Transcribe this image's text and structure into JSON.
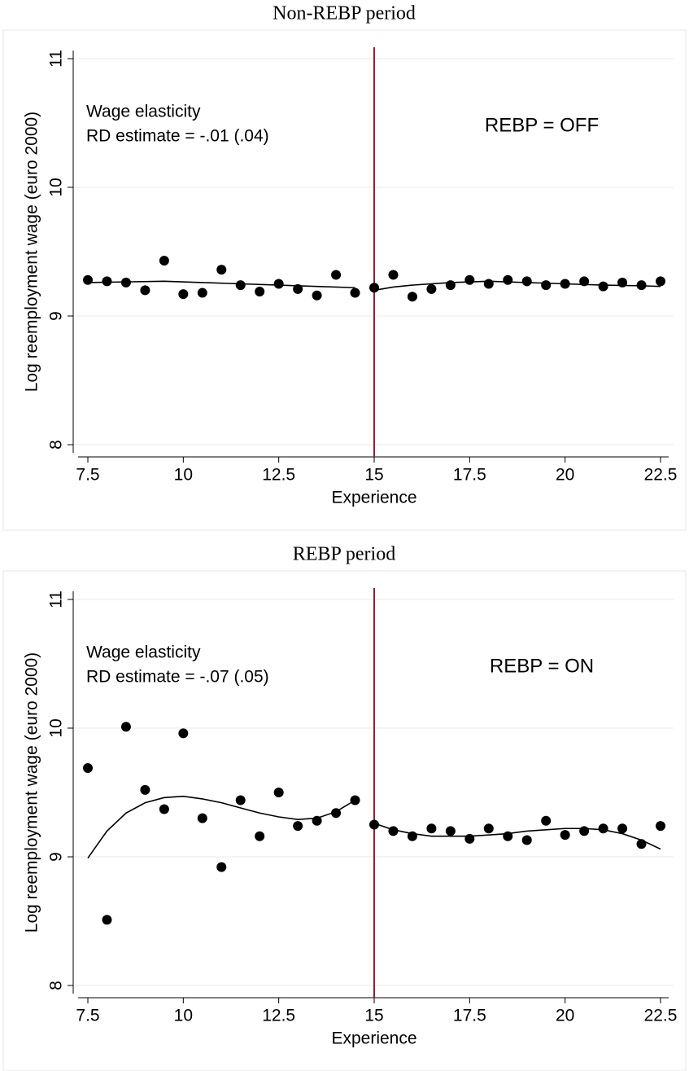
{
  "chart_data": [
    {
      "type": "scatter",
      "title": "Non-REBP period",
      "xlabel": "Experience",
      "ylabel": "Log reemployment wage (euro 2000)",
      "annotations": [
        "Wage elasticity",
        "RD estimate = -.01 (.04)"
      ],
      "regime_label": "REBP = OFF",
      "x": [
        7.5,
        8,
        8.5,
        9,
        9.5,
        10,
        10.5,
        11,
        11.5,
        12,
        12.5,
        13,
        13.5,
        14,
        14.5,
        15,
        15.5,
        16,
        16.5,
        17,
        17.5,
        18,
        18.5,
        19,
        19.5,
        20,
        20.5,
        21,
        21.5,
        22,
        22.5
      ],
      "values": [
        9.28,
        9.27,
        9.26,
        9.2,
        9.43,
        9.17,
        9.18,
        9.36,
        9.24,
        9.19,
        9.25,
        9.21,
        9.16,
        9.32,
        9.18,
        9.22,
        9.32,
        9.15,
        9.21,
        9.24,
        9.28,
        9.25,
        9.28,
        9.27,
        9.24,
        9.25,
        9.27,
        9.23,
        9.26,
        9.24,
        9.27
      ],
      "color": "#000000",
      "fit": [
        {
          "x": [
            7.5,
            8.5,
            9.5,
            10.5,
            11.5,
            12.5,
            13.5,
            14.5
          ],
          "values": [
            9.26,
            9.265,
            9.27,
            9.26,
            9.25,
            9.24,
            9.23,
            9.22
          ]
        },
        {
          "x": [
            15,
            15.5,
            16,
            17,
            18,
            19,
            20,
            21,
            22,
            22.5
          ],
          "values": [
            9.2,
            9.225,
            9.24,
            9.26,
            9.27,
            9.26,
            9.25,
            9.24,
            9.235,
            9.23
          ]
        }
      ],
      "cutoff": 15,
      "cutoff_color": "#9b1b30",
      "xlim": [
        7.5,
        22.5
      ],
      "xticks": [
        7.5,
        10,
        12.5,
        15,
        17.5,
        20,
        22.5
      ],
      "ylim": [
        8,
        11
      ],
      "yticks": [
        8,
        9,
        10,
        11
      ],
      "grid": true
    },
    {
      "type": "scatter",
      "title": "REBP period",
      "xlabel": "Experience",
      "ylabel": "Log reemployment wage (euro 2000)",
      "annotations": [
        "Wage elasticity",
        "RD estimate = -.07 (.05)"
      ],
      "regime_label": "REBP = ON",
      "x": [
        7.5,
        8,
        8.5,
        9,
        9.5,
        10,
        10.5,
        11,
        11.5,
        12,
        12.5,
        13,
        13.5,
        14,
        14.5,
        15,
        15.5,
        16,
        16.5,
        17,
        17.5,
        18,
        18.5,
        19,
        19.5,
        20,
        20.5,
        21,
        21.5,
        22,
        22.5
      ],
      "values": [
        9.69,
        8.51,
        10.01,
        9.52,
        9.37,
        9.96,
        9.3,
        8.92,
        9.44,
        9.16,
        9.5,
        9.24,
        9.28,
        9.34,
        9.44,
        9.25,
        9.2,
        9.16,
        9.22,
        9.2,
        9.14,
        9.22,
        9.16,
        9.13,
        9.28,
        9.17,
        9.2,
        9.22,
        9.22,
        9.1,
        9.24
      ],
      "color": "#000000",
      "fit": [
        {
          "x": [
            7.5,
            8,
            8.5,
            9,
            9.5,
            10,
            10.5,
            11,
            11.5,
            12,
            12.5,
            13,
            13.5,
            14,
            14.5
          ],
          "values": [
            8.99,
            9.2,
            9.34,
            9.42,
            9.46,
            9.47,
            9.45,
            9.42,
            9.38,
            9.34,
            9.31,
            9.29,
            9.3,
            9.35,
            9.44
          ]
        },
        {
          "x": [
            15,
            15.5,
            16,
            16.5,
            17,
            17.5,
            18,
            18.5,
            19,
            19.5,
            20,
            20.5,
            21,
            21.5,
            22,
            22.5
          ],
          "values": [
            9.26,
            9.21,
            9.18,
            9.16,
            9.16,
            9.16,
            9.17,
            9.18,
            9.2,
            9.21,
            9.22,
            9.22,
            9.21,
            9.18,
            9.13,
            9.06
          ]
        }
      ],
      "cutoff": 15,
      "cutoff_color": "#9b1b30",
      "xlim": [
        7.5,
        22.5
      ],
      "xticks": [
        7.5,
        10,
        12.5,
        15,
        17.5,
        20,
        22.5
      ],
      "ylim": [
        8,
        11
      ],
      "yticks": [
        8,
        9,
        10,
        11
      ],
      "grid": true
    }
  ]
}
